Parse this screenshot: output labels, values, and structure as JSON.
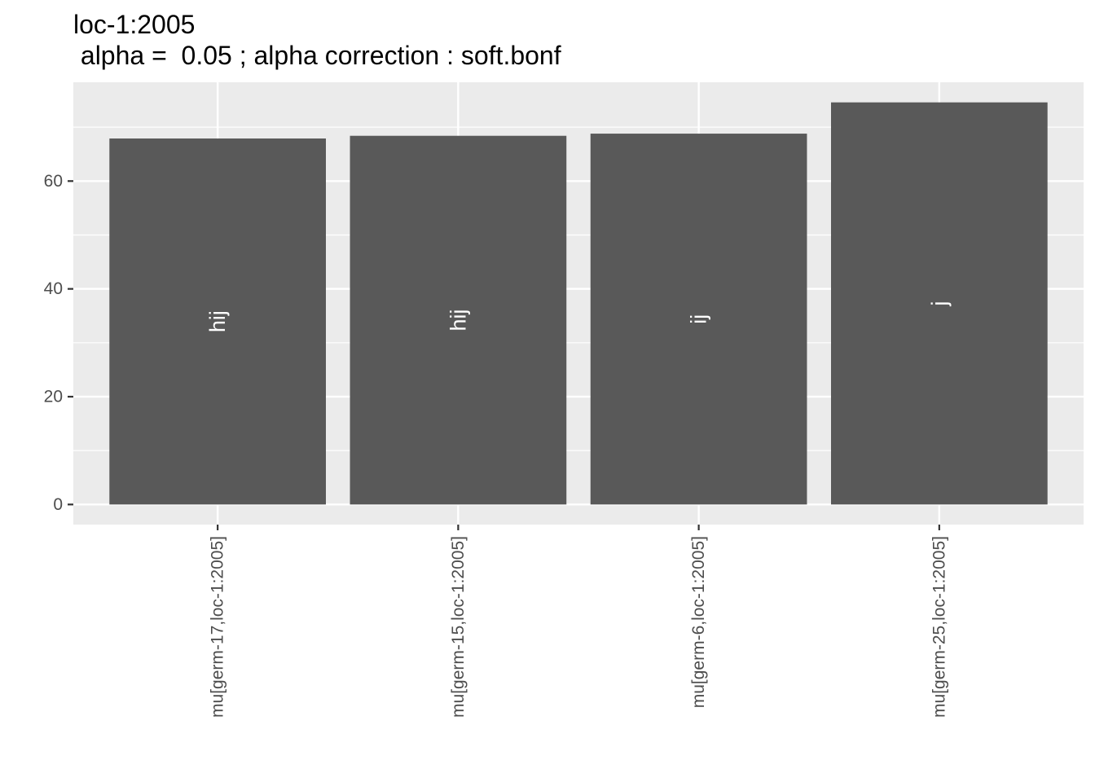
{
  "chart_data": {
    "type": "bar",
    "title": "loc-1:2005",
    "subtitle": " alpha =  0.05 ; alpha correction : soft.bonf",
    "xlabel": "",
    "ylabel": "",
    "categories": [
      "mu[germ-17,loc-1:2005]",
      "mu[germ-15,loc-1:2005]",
      "mu[germ-6,loc-1:2005]",
      "mu[germ-25,loc-1:2005]"
    ],
    "values": [
      67.9,
      68.4,
      68.8,
      74.6
    ],
    "group_labels": [
      "hij",
      "hij",
      "ij",
      "j"
    ],
    "ylim": [
      -3.73,
      78.33
    ],
    "yticks": [
      0,
      20,
      40,
      60
    ],
    "grid": true,
    "colors": {
      "panel": "#ebebeb",
      "grid_major": "#ffffff",
      "bar": "#595959",
      "bar_label": "#ffffff",
      "tick_text": "#4d4d4d",
      "tick_mark": "#333333"
    }
  }
}
